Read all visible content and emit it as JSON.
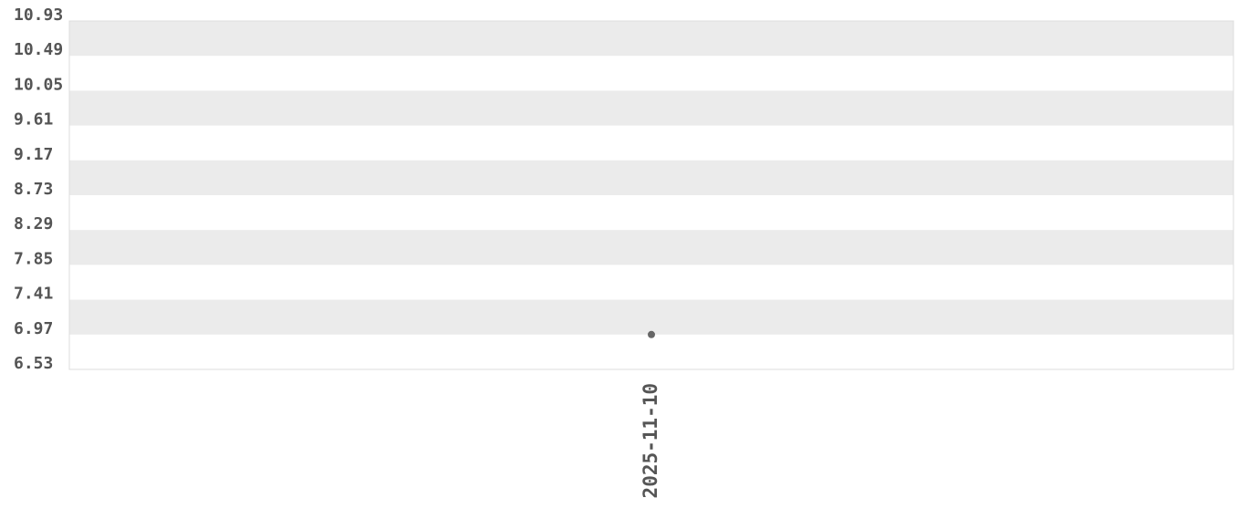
{
  "chart_data": {
    "type": "scatter",
    "title": "",
    "xlabel": "",
    "ylabel": "",
    "x_ticks": [
      "2025-11-10"
    ],
    "y_ticks": [
      "10.93",
      "10.49",
      "10.05",
      "9.61",
      "9.17",
      "8.73",
      "8.29",
      "7.85",
      "7.41",
      "6.97",
      "6.53"
    ],
    "ylim": [
      6.53,
      10.93
    ],
    "grid": "alternating horizontal bands",
    "points": [
      {
        "x": "2025-11-10",
        "y": 6.97
      }
    ],
    "colors": {
      "band": "#ebebeb",
      "point": "#666666",
      "text": "#555555",
      "border": "#dddddd"
    }
  }
}
